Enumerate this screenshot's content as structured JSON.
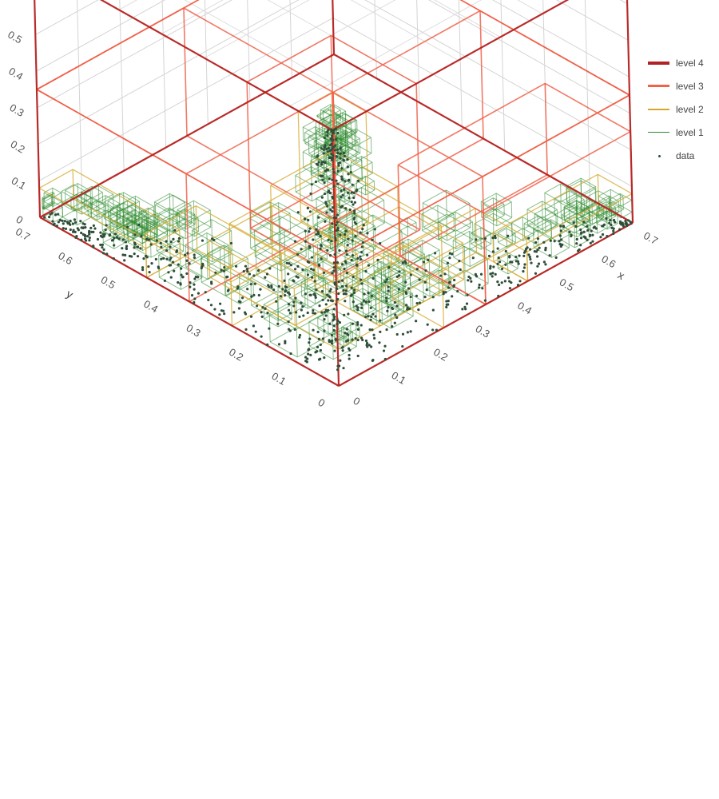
{
  "chart_data": {
    "type": "scatter3d",
    "title": "",
    "axes": {
      "x": {
        "label": "x",
        "ticks": [
          "0",
          "0.1",
          "0.2",
          "0.3",
          "0.4",
          "0.5",
          "0.6",
          "0.7"
        ],
        "range": [
          0,
          0.7
        ]
      },
      "y": {
        "label": "y",
        "ticks": [
          "0",
          "0.1",
          "0.2",
          "0.3",
          "0.4",
          "0.5",
          "0.6",
          "0.7"
        ],
        "range": [
          0,
          0.7
        ]
      },
      "z": {
        "label": "",
        "ticks": [
          "0",
          "0.1",
          "0.2",
          "0.3",
          "0.4",
          "0.5"
        ],
        "range": [
          0,
          0.7
        ]
      }
    },
    "grid": true,
    "legend_position": "top-right",
    "series": [
      {
        "name": "level 4",
        "kind": "box-outline",
        "color": "#b22222",
        "boxes": [
          {
            "min": [
              0,
              0,
              0
            ],
            "max": [
              0.7,
              0.7,
              0.7
            ]
          }
        ]
      },
      {
        "name": "level 3",
        "kind": "box-outline",
        "color": "#f0624a",
        "boxes": [
          {
            "min": [
              0,
              0,
              0
            ],
            "max": [
              0.7,
              0.7,
              0.35
            ]
          },
          {
            "min": [
              0,
              0,
              0.35
            ],
            "max": [
              0.7,
              0.7,
              0.7
            ]
          },
          {
            "min": [
              0.35,
              0,
              0
            ],
            "max": [
              0.7,
              0.35,
              0.35
            ]
          },
          {
            "min": [
              0,
              0.35,
              0
            ],
            "max": [
              0.35,
              0.7,
              0.35
            ]
          },
          {
            "min": [
              0,
              0,
              0.3
            ],
            "max": [
              0.2,
              0.2,
              0.7
            ]
          },
          {
            "min": [
              0.35,
              0,
              0
            ],
            "max": [
              0.7,
              0.2,
              0.25
            ]
          }
        ]
      },
      {
        "name": "level 2",
        "kind": "box-outline",
        "color": "#d4a82a",
        "boxes": [
          {
            "min": [
              0,
              0,
              0.4
            ],
            "max": [
              0.08,
              0.08,
              0.7
            ]
          },
          {
            "min": [
              0,
              0,
              0.25
            ],
            "max": [
              0.15,
              0.15,
              0.45
            ]
          },
          {
            "min": [
              0,
              0,
              0.1
            ],
            "max": [
              0.25,
              0.25,
              0.28
            ]
          },
          {
            "min": [
              0.25,
              0,
              0
            ],
            "max": [
              0.45,
              0.12,
              0.12
            ]
          },
          {
            "min": [
              0.45,
              0,
              0
            ],
            "max": [
              0.7,
              0.08,
              0.08
            ]
          },
          {
            "min": [
              0,
              0.25,
              0
            ],
            "max": [
              0.12,
              0.45,
              0.12
            ]
          },
          {
            "min": [
              0,
              0.45,
              0
            ],
            "max": [
              0.08,
              0.7,
              0.08
            ]
          },
          {
            "min": [
              0.1,
              0,
              0.1
            ],
            "max": [
              0.3,
              0.15,
              0.2
            ]
          },
          {
            "min": [
              0,
              0.1,
              0.1
            ],
            "max": [
              0.15,
              0.3,
              0.2
            ]
          }
        ]
      },
      {
        "name": "level 1",
        "kind": "box-outline",
        "color": "#2e8b2e",
        "boxes": []
      },
      {
        "name": "data",
        "kind": "markers",
        "color": "#2f4f3a",
        "points": []
      }
    ]
  }
}
